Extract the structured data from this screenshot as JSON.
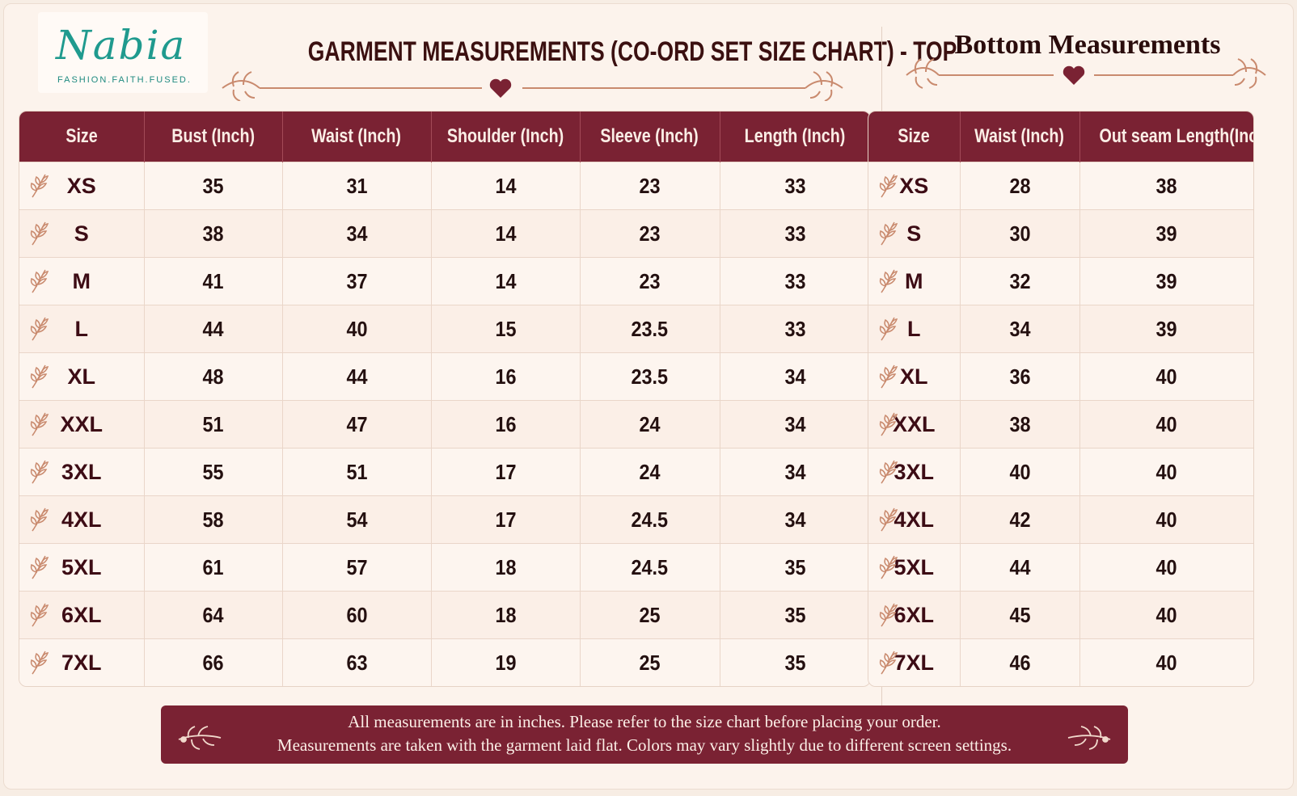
{
  "brand": {
    "name": "Nabia",
    "tagline": "FASHION.FAITH.FUSED."
  },
  "top_chart": {
    "title": "GARMENT MEASUREMENTS (CO-ORD SET SIZE CHART) - TOP",
    "headers": [
      "Size",
      "Bust (Inch)",
      "Waist (Inch)",
      "Shoulder (Inch)",
      "Sleeve (Inch)",
      "Length (Inch)"
    ],
    "rows": [
      [
        "XS",
        "35",
        "31",
        "14",
        "23",
        "33"
      ],
      [
        "S",
        "38",
        "34",
        "14",
        "23",
        "33"
      ],
      [
        "M",
        "41",
        "37",
        "14",
        "23",
        "33"
      ],
      [
        "L",
        "44",
        "40",
        "15",
        "23.5",
        "33"
      ],
      [
        "XL",
        "48",
        "44",
        "16",
        "23.5",
        "34"
      ],
      [
        "XXL",
        "51",
        "47",
        "16",
        "24",
        "34"
      ],
      [
        "3XL",
        "55",
        "51",
        "17",
        "24",
        "34"
      ],
      [
        "4XL",
        "58",
        "54",
        "17",
        "24.5",
        "34"
      ],
      [
        "5XL",
        "61",
        "57",
        "18",
        "24.5",
        "35"
      ],
      [
        "6XL",
        "64",
        "60",
        "18",
        "25",
        "35"
      ],
      [
        "7XL",
        "66",
        "63",
        "19",
        "25",
        "35"
      ]
    ]
  },
  "bottom_chart": {
    "title": "Bottom Measurements",
    "headers": [
      "Size",
      "Waist (Inch)",
      "Out seam Length(Inch)"
    ],
    "rows": [
      [
        "XS",
        "28",
        "38"
      ],
      [
        "S",
        "30",
        "39"
      ],
      [
        "M",
        "32",
        "39"
      ],
      [
        "L",
        "34",
        "39"
      ],
      [
        "XL",
        "36",
        "40"
      ],
      [
        "XXL",
        "38",
        "40"
      ],
      [
        "3XL",
        "40",
        "40"
      ],
      [
        "4XL",
        "42",
        "40"
      ],
      [
        "5XL",
        "44",
        "40"
      ],
      [
        "6XL",
        "45",
        "40"
      ],
      [
        "7XL",
        "46",
        "40"
      ]
    ]
  },
  "footer": {
    "line1": "All measurements are in inches. Please refer to the size chart before placing your order.",
    "line2": "Measurements are taken with the garment laid flat. Colors may vary slightly due to different screen settings."
  },
  "colors": {
    "header_bg": "#7a2233",
    "logo_teal": "#1f9a8e",
    "ornament": "#c98a6e",
    "heart": "#7a2233"
  },
  "icons": [
    "leaf-sprig-icon",
    "heart-icon",
    "floral-ornament-icon"
  ]
}
